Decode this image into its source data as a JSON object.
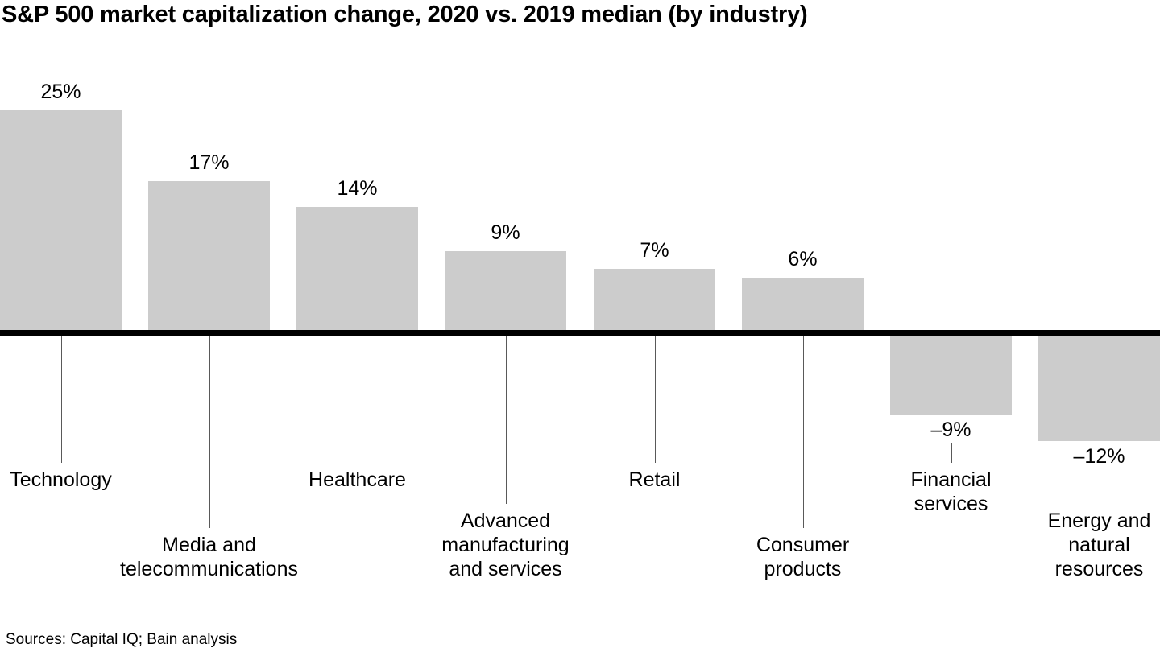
{
  "title": "S&P 500 market capitalization change, 2020 vs. 2019 median (by industry)",
  "source_note": "Sources: Capital IQ; Bain analysis",
  "colors": {
    "background": "#ffffff",
    "bar": "#cccccc",
    "axis_line": "#000000",
    "leader_line": "#595959",
    "text": "#000000"
  },
  "chart_data": {
    "type": "bar",
    "title": "S&P 500 market capitalization change, 2020 vs. 2019 median (by industry)",
    "unit": "percent",
    "categories": [
      "Technology",
      "Media and telecommunications",
      "Healthcare",
      "Advanced manufacturing and services",
      "Retail",
      "Consumer products",
      "Financial services",
      "Energy and natural resources"
    ],
    "values": [
      25,
      17,
      14,
      9,
      7,
      6,
      -9,
      -12
    ],
    "value_labels": [
      "25%",
      "17%",
      "14%",
      "9%",
      "7%",
      "6%",
      "–9%",
      "–12%"
    ],
    "category_label_lines": [
      [
        "Technology"
      ],
      [
        "Media and",
        "telecommunications"
      ],
      [
        "Healthcare"
      ],
      [
        "Advanced",
        "manufacturing",
        "and services"
      ],
      [
        "Retail"
      ],
      [
        "Consumer",
        "products"
      ],
      [
        "Financial",
        "services"
      ],
      [
        "Energy and",
        "natural",
        "resources"
      ]
    ],
    "baseline": 0,
    "ylim": [
      -12,
      25
    ],
    "xlabel": "",
    "ylabel": "",
    "grid": false,
    "legend": false,
    "data_labels": true
  }
}
